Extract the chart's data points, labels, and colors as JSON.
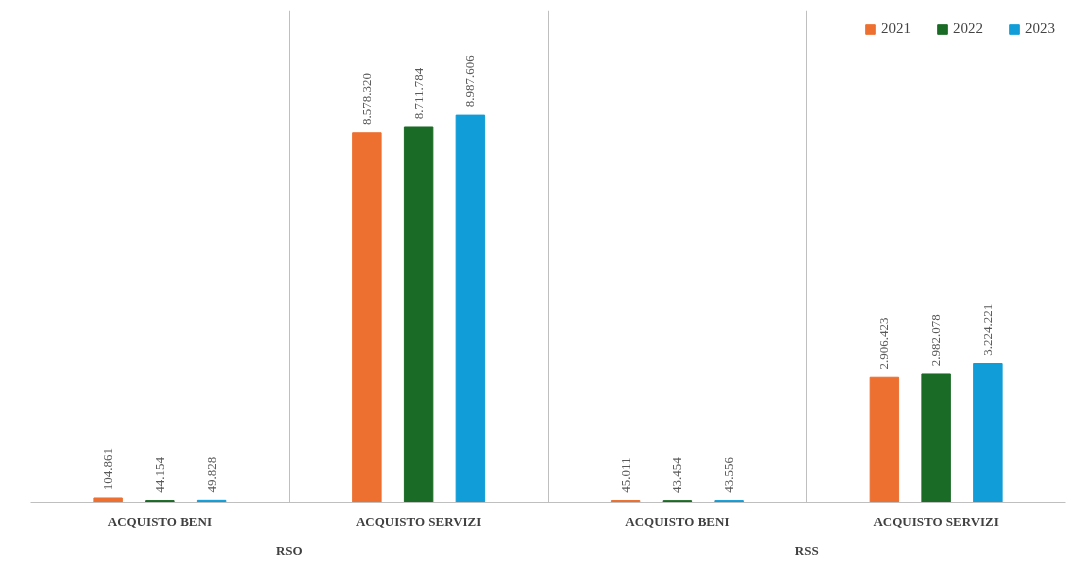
{
  "chart_data": {
    "type": "bar",
    "categories": [
      "ACQUISTO BENI",
      "ACQUISTO SERVIZI",
      "ACQUISTO BENI",
      "ACQUISTO SERVIZI"
    ],
    "annotations": [
      "RSO",
      "RSS"
    ],
    "series": [
      {
        "name": "2021",
        "color": "#ed7031",
        "values": [
          104861,
          8578320,
          45011,
          2906423
        ],
        "value_labels": [
          "104.861",
          "8.578.320",
          "45.011",
          "2.906.423"
        ]
      },
      {
        "name": "2022",
        "color": "#1a6b25",
        "values": [
          44154,
          8711784,
          43454,
          2982078
        ],
        "value_labels": [
          "44.154",
          "8.711.784",
          "43.454",
          "2.982.078"
        ]
      },
      {
        "name": "2023",
        "color": "#109dd8",
        "values": [
          49828,
          8987606,
          43556,
          3224221
        ],
        "value_labels": [
          "49.828",
          "8.987.606",
          "43.556",
          "3.224.221"
        ]
      }
    ],
    "grid": "x",
    "legend": "top right",
    "tick_labels": "x"
  }
}
